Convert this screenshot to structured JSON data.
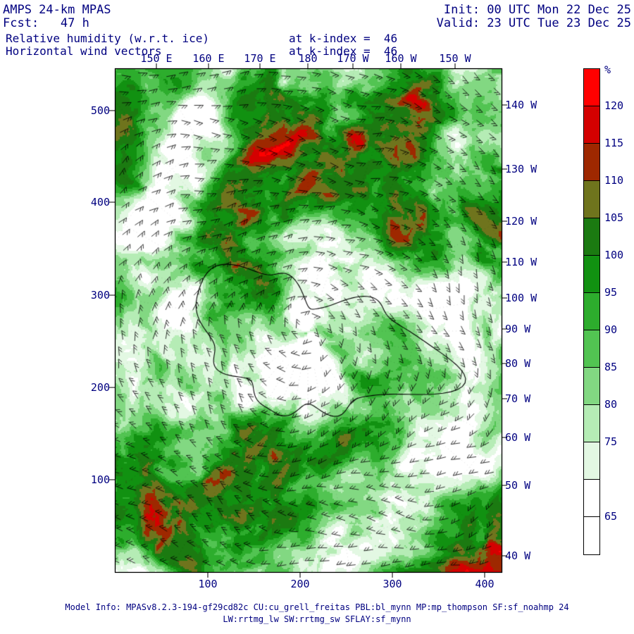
{
  "title_block": {
    "model": "AMPS 24-km MPAS",
    "fcst": "Fcst:   47 h",
    "field": "Relative humidity (w.r.t. ice)",
    "field_at": "at k-index =  46",
    "vectors": "Horizontal wind vectors",
    "vectors_at": "at k-index =  46",
    "init": "Init: 00 UTC Mon 22 Dec 25",
    "valid": "Valid: 23 UTC Tue 23 Dec 25"
  },
  "map_axes": {
    "top": [
      "150 E",
      "160 E",
      "170 E",
      "180",
      "170 W",
      "160 W",
      "150 W"
    ],
    "left": [
      "500",
      "400",
      "300",
      "200",
      "100"
    ],
    "bottom": [
      "100",
      "200",
      "300",
      "400"
    ],
    "right": [
      "140 W",
      "130 W",
      "120 W",
      "110 W",
      "100 W",
      "90 W",
      "80 W",
      "70 W",
      "60 W",
      "50 W",
      "40 W"
    ]
  },
  "colorbar": {
    "unit": "%",
    "ticks": [
      "120",
      "115",
      "110",
      "105",
      "100",
      "95",
      "90",
      "85",
      "80",
      "75",
      "65"
    ],
    "segments_top_to_bottom": [
      {
        "label": ">120",
        "color": "#ff0000"
      },
      {
        "label": "115-120",
        "color": "#d40000"
      },
      {
        "label": "110-115",
        "color": "#9e2800"
      },
      {
        "label": "105-110",
        "color": "#6f741d"
      },
      {
        "label": "100-105",
        "color": "#1b7a11"
      },
      {
        "label": "95-100",
        "color": "#119111"
      },
      {
        "label": "90-95",
        "color": "#2dad2d"
      },
      {
        "label": "85-90",
        "color": "#52c452"
      },
      {
        "label": "80-85",
        "color": "#82d882"
      },
      {
        "label": "75-80",
        "color": "#b5ecb5"
      },
      {
        "label": "70-75",
        "color": "#e3f8e3"
      },
      {
        "label": "65-70",
        "color": "#ffffff"
      },
      {
        "label": "<65",
        "color": "#ffffff"
      }
    ]
  },
  "footer": {
    "line1": "Model Info: MPASv8.2.3-194-gf29cd82c CU:cu_grell_freitas PBL:bl_mynn MP:mp_thompson SF:sf_noahmp 24",
    "line2": "LW:rrtmg_lw SW:rrtmg_sw SFLAY:sf_mynn"
  },
  "colors": {
    "annotation_text": "#000080",
    "frame": "#000000",
    "wind_barbs": "#000000",
    "coastline": "#000000"
  }
}
